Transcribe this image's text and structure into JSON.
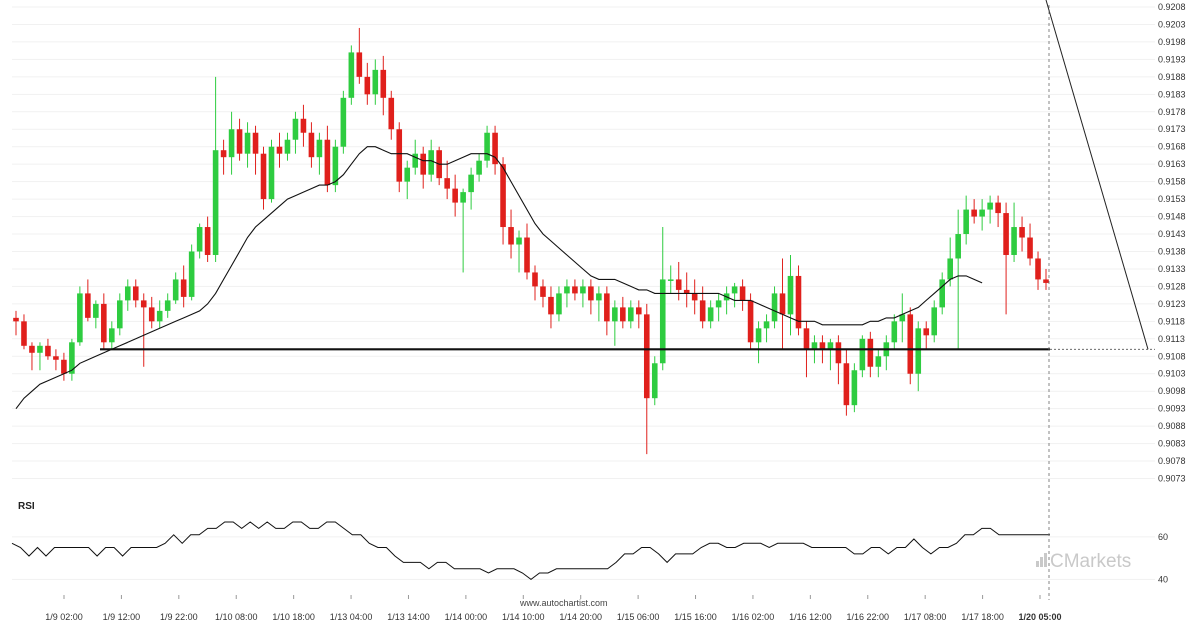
{
  "watermark": "www.autochartist.com",
  "brand": "Markets",
  "brand_prefix": "C",
  "rsi_label": "RSI",
  "colors": {
    "bull": "#2ecc40",
    "bear": "#e0201c",
    "ma": "#111111",
    "support": "#111111",
    "rsi": "#111111",
    "grid": "#f1f1f1",
    "forecast": "#222222"
  },
  "chart_data": {
    "type": "candlestick",
    "title": "",
    "xlabel": "",
    "ylabel": "",
    "ylim": [
      0.907,
      0.9208
    ],
    "price_ticks": [
      "0.9208",
      "0.9203",
      "0.9198",
      "0.9193",
      "0.9188",
      "0.9183",
      "0.9178",
      "0.9173",
      "0.9168",
      "0.9163",
      "0.9158",
      "0.9153",
      "0.9148",
      "0.9143",
      "0.9138",
      "0.9133",
      "0.9128",
      "0.9123",
      "0.9118",
      "0.9113",
      "0.9108",
      "0.9103",
      "0.9098",
      "0.9093",
      "0.9088",
      "0.9083",
      "0.9078",
      "0.9073"
    ],
    "x_ticks": [
      "1/9 02:00",
      "1/9 12:00",
      "1/9 22:00",
      "1/10 08:00",
      "1/10 18:00",
      "1/13 04:00",
      "1/13 14:00",
      "1/14 00:00",
      "1/14 10:00",
      "1/14 20:00",
      "1/15 06:00",
      "1/15 16:00",
      "1/16 02:00",
      "1/16 12:00",
      "1/16 22:00",
      "1/17 08:00",
      "1/17 18:00",
      "1/20 05:00"
    ],
    "support_level": 0.911,
    "forecast_target": 0.911,
    "rsi_ticks": [
      "60",
      "40"
    ],
    "rsi_ylim": [
      35,
      75
    ],
    "candles": [
      [
        0.9119,
        0.9121,
        0.9114,
        0.9118
      ],
      [
        0.9118,
        0.912,
        0.911,
        0.9111
      ],
      [
        0.9111,
        0.9112,
        0.9104,
        0.9109
      ],
      [
        0.9109,
        0.9112,
        0.9104,
        0.9111
      ],
      [
        0.9111,
        0.9113,
        0.9107,
        0.9108
      ],
      [
        0.9108,
        0.911,
        0.9104,
        0.9107
      ],
      [
        0.9107,
        0.9109,
        0.9101,
        0.9103
      ],
      [
        0.9103,
        0.9113,
        0.9101,
        0.9112
      ],
      [
        0.9112,
        0.9128,
        0.9111,
        0.9126
      ],
      [
        0.9126,
        0.913,
        0.9118,
        0.9119
      ],
      [
        0.9119,
        0.9124,
        0.9116,
        0.9123
      ],
      [
        0.9123,
        0.9126,
        0.911,
        0.9112
      ],
      [
        0.9112,
        0.9118,
        0.911,
        0.9116
      ],
      [
        0.9116,
        0.9126,
        0.9114,
        0.9124
      ],
      [
        0.9124,
        0.913,
        0.9121,
        0.9128
      ],
      [
        0.9128,
        0.913,
        0.9122,
        0.9124
      ],
      [
        0.9124,
        0.9126,
        0.9105,
        0.9122
      ],
      [
        0.9122,
        0.9125,
        0.9116,
        0.9118
      ],
      [
        0.9118,
        0.9124,
        0.9116,
        0.9121
      ],
      [
        0.9121,
        0.9126,
        0.9119,
        0.9124
      ],
      [
        0.9124,
        0.9132,
        0.9123,
        0.913
      ],
      [
        0.913,
        0.9134,
        0.9122,
        0.9125
      ],
      [
        0.9125,
        0.914,
        0.9124,
        0.9138
      ],
      [
        0.9138,
        0.9146,
        0.9136,
        0.9145
      ],
      [
        0.9145,
        0.9148,
        0.9135,
        0.9137
      ],
      [
        0.9137,
        0.9188,
        0.9135,
        0.9167
      ],
      [
        0.9167,
        0.917,
        0.916,
        0.9165
      ],
      [
        0.9165,
        0.9178,
        0.916,
        0.9173
      ],
      [
        0.9173,
        0.9176,
        0.9164,
        0.9166
      ],
      [
        0.9166,
        0.9175,
        0.9162,
        0.9172
      ],
      [
        0.9172,
        0.9174,
        0.916,
        0.9166
      ],
      [
        0.9166,
        0.9168,
        0.915,
        0.9153
      ],
      [
        0.9153,
        0.917,
        0.9152,
        0.9168
      ],
      [
        0.9168,
        0.9172,
        0.9162,
        0.9166
      ],
      [
        0.9166,
        0.9172,
        0.9164,
        0.917
      ],
      [
        0.917,
        0.9178,
        0.9166,
        0.9176
      ],
      [
        0.9176,
        0.918,
        0.9168,
        0.9172
      ],
      [
        0.9172,
        0.9175,
        0.9162,
        0.9165
      ],
      [
        0.9165,
        0.9172,
        0.916,
        0.917
      ],
      [
        0.917,
        0.9174,
        0.9155,
        0.9157
      ],
      [
        0.9157,
        0.917,
        0.9155,
        0.9168
      ],
      [
        0.9168,
        0.9184,
        0.9166,
        0.9182
      ],
      [
        0.9182,
        0.9197,
        0.918,
        0.9195
      ],
      [
        0.9195,
        0.9202,
        0.9186,
        0.9188
      ],
      [
        0.9188,
        0.9192,
        0.918,
        0.9183
      ],
      [
        0.9183,
        0.9193,
        0.918,
        0.919
      ],
      [
        0.919,
        0.9194,
        0.9177,
        0.9182
      ],
      [
        0.9182,
        0.9184,
        0.917,
        0.9173
      ],
      [
        0.9173,
        0.9175,
        0.9155,
        0.9158
      ],
      [
        0.9158,
        0.9164,
        0.9153,
        0.9162
      ],
      [
        0.9162,
        0.917,
        0.916,
        0.9166
      ],
      [
        0.9166,
        0.9168,
        0.9156,
        0.916
      ],
      [
        0.916,
        0.917,
        0.9158,
        0.9167
      ],
      [
        0.9167,
        0.9168,
        0.9157,
        0.9159
      ],
      [
        0.9159,
        0.9164,
        0.9153,
        0.9156
      ],
      [
        0.9156,
        0.916,
        0.9148,
        0.9152
      ],
      [
        0.9152,
        0.9156,
        0.9132,
        0.9155
      ],
      [
        0.9155,
        0.9162,
        0.915,
        0.916
      ],
      [
        0.916,
        0.9166,
        0.9158,
        0.9164
      ],
      [
        0.9164,
        0.9174,
        0.9162,
        0.9172
      ],
      [
        0.9172,
        0.9174,
        0.916,
        0.9163
      ],
      [
        0.9163,
        0.9165,
        0.914,
        0.9145
      ],
      [
        0.9145,
        0.915,
        0.9136,
        0.914
      ],
      [
        0.914,
        0.9144,
        0.9132,
        0.9142
      ],
      [
        0.9142,
        0.9146,
        0.913,
        0.9132
      ],
      [
        0.9132,
        0.9134,
        0.9124,
        0.9128
      ],
      [
        0.9128,
        0.913,
        0.9122,
        0.9125
      ],
      [
        0.9125,
        0.9128,
        0.9116,
        0.912
      ],
      [
        0.912,
        0.9128,
        0.9118,
        0.9126
      ],
      [
        0.9126,
        0.913,
        0.9122,
        0.9128
      ],
      [
        0.9128,
        0.913,
        0.9124,
        0.9126
      ],
      [
        0.9126,
        0.913,
        0.9122,
        0.9128
      ],
      [
        0.9128,
        0.913,
        0.912,
        0.9124
      ],
      [
        0.9124,
        0.9128,
        0.9118,
        0.9126
      ],
      [
        0.9126,
        0.9128,
        0.9114,
        0.9118
      ],
      [
        0.9118,
        0.9124,
        0.9111,
        0.9122
      ],
      [
        0.9122,
        0.9125,
        0.9116,
        0.9118
      ],
      [
        0.9118,
        0.9124,
        0.9116,
        0.9122
      ],
      [
        0.9122,
        0.9124,
        0.9116,
        0.912
      ],
      [
        0.912,
        0.9123,
        0.908,
        0.9096
      ],
      [
        0.9096,
        0.9108,
        0.9094,
        0.9106
      ],
      [
        0.9106,
        0.9145,
        0.9104,
        0.913
      ],
      [
        0.913,
        0.9134,
        0.9126,
        0.913
      ],
      [
        0.913,
        0.9135,
        0.9124,
        0.9127
      ],
      [
        0.9127,
        0.9132,
        0.9122,
        0.9126
      ],
      [
        0.9126,
        0.913,
        0.912,
        0.9124
      ],
      [
        0.9124,
        0.9128,
        0.9116,
        0.9118
      ],
      [
        0.9118,
        0.9124,
        0.9116,
        0.9122
      ],
      [
        0.9122,
        0.9126,
        0.9118,
        0.9124
      ],
      [
        0.9124,
        0.9128,
        0.912,
        0.9126
      ],
      [
        0.9126,
        0.9129,
        0.9122,
        0.9128
      ],
      [
        0.9128,
        0.913,
        0.9121,
        0.9124
      ],
      [
        0.9124,
        0.9126,
        0.911,
        0.9112
      ],
      [
        0.9112,
        0.9118,
        0.9106,
        0.9116
      ],
      [
        0.9116,
        0.912,
        0.9112,
        0.9118
      ],
      [
        0.9118,
        0.9128,
        0.9116,
        0.9126
      ],
      [
        0.9126,
        0.9136,
        0.911,
        0.912
      ],
      [
        0.912,
        0.9137,
        0.9114,
        0.9131
      ],
      [
        0.9131,
        0.9134,
        0.9114,
        0.9116
      ],
      [
        0.9116,
        0.9118,
        0.9102,
        0.911
      ],
      [
        0.911,
        0.9114,
        0.9106,
        0.9112
      ],
      [
        0.9112,
        0.9114,
        0.9106,
        0.911
      ],
      [
        0.911,
        0.9113,
        0.9104,
        0.9112
      ],
      [
        0.9112,
        0.9114,
        0.91,
        0.9106
      ],
      [
        0.9106,
        0.911,
        0.9091,
        0.9094
      ],
      [
        0.9094,
        0.9106,
        0.9092,
        0.9104
      ],
      [
        0.9104,
        0.9114,
        0.9102,
        0.9113
      ],
      [
        0.9113,
        0.9115,
        0.9102,
        0.9105
      ],
      [
        0.9105,
        0.911,
        0.9102,
        0.9108
      ],
      [
        0.9108,
        0.9114,
        0.9104,
        0.9112
      ],
      [
        0.9112,
        0.912,
        0.911,
        0.9118
      ],
      [
        0.9118,
        0.9126,
        0.9112,
        0.912
      ],
      [
        0.912,
        0.9122,
        0.91,
        0.9103
      ],
      [
        0.9103,
        0.9118,
        0.9098,
        0.9116
      ],
      [
        0.9116,
        0.9118,
        0.911,
        0.9114
      ],
      [
        0.9114,
        0.9124,
        0.9112,
        0.9122
      ],
      [
        0.9122,
        0.9132,
        0.912,
        0.913
      ],
      [
        0.913,
        0.9142,
        0.9128,
        0.9136
      ],
      [
        0.9136,
        0.915,
        0.911,
        0.9143
      ],
      [
        0.9143,
        0.9154,
        0.914,
        0.915
      ],
      [
        0.915,
        0.9153,
        0.9146,
        0.9148
      ],
      [
        0.9148,
        0.9153,
        0.9144,
        0.915
      ],
      [
        0.915,
        0.9154,
        0.9146,
        0.9152
      ],
      [
        0.9152,
        0.9154,
        0.9145,
        0.9149
      ],
      [
        0.9149,
        0.9152,
        0.912,
        0.9137
      ],
      [
        0.9137,
        0.9152,
        0.9135,
        0.9145
      ],
      [
        0.9145,
        0.9148,
        0.9138,
        0.9142
      ],
      [
        0.9142,
        0.9146,
        0.9134,
        0.9136
      ],
      [
        0.9136,
        0.9138,
        0.9127,
        0.913
      ],
      [
        0.913,
        0.9133,
        0.9127,
        0.9129
      ]
    ],
    "ma": [
      0.9093,
      0.9096,
      0.9098,
      0.91,
      0.9101,
      0.9102,
      0.9103,
      0.9104,
      0.9106,
      0.9107,
      0.9108,
      0.9109,
      0.911,
      0.9111,
      0.9112,
      0.9113,
      0.9114,
      0.9115,
      0.9116,
      0.9117,
      0.9118,
      0.9119,
      0.912,
      0.9121,
      0.9123,
      0.9126,
      0.913,
      0.9134,
      0.9138,
      0.9142,
      0.9145,
      0.9147,
      0.9149,
      0.9151,
      0.9153,
      0.9154,
      0.9155,
      0.9156,
      0.9157,
      0.9157,
      0.9158,
      0.916,
      0.9163,
      0.9166,
      0.9168,
      0.9168,
      0.9167,
      0.9166,
      0.9166,
      0.9166,
      0.9165,
      0.9164,
      0.9164,
      0.9163,
      0.9163,
      0.9164,
      0.9165,
      0.9166,
      0.9166,
      0.9166,
      0.9165,
      0.9162,
      0.9158,
      0.9154,
      0.915,
      0.9146,
      0.9143,
      0.9141,
      0.9139,
      0.9137,
      0.9135,
      0.9133,
      0.9131,
      0.913,
      0.913,
      0.913,
      0.9129,
      0.9128,
      0.9127,
      0.9127,
      0.9126,
      0.9126,
      0.9126,
      0.9126,
      0.9126,
      0.9126,
      0.9126,
      0.9126,
      0.9126,
      0.9125,
      0.9124,
      0.9124,
      0.9124,
      0.9123,
      0.9122,
      0.9121,
      0.912,
      0.9119,
      0.9118,
      0.9118,
      0.9118,
      0.9117,
      0.9117,
      0.9117,
      0.9117,
      0.9117,
      0.9117,
      0.9118,
      0.9118,
      0.9119,
      0.9119,
      0.912,
      0.9121,
      0.9122,
      0.9124,
      0.9126,
      0.9128,
      0.913,
      0.9131,
      0.9131,
      0.913,
      0.9129
    ],
    "rsi": [
      57,
      55,
      51,
      55,
      51,
      55,
      55,
      55,
      55,
      55,
      51,
      55,
      55,
      51,
      55,
      55,
      55,
      55,
      57,
      61,
      57,
      61,
      61,
      64,
      64,
      67,
      67,
      64,
      67,
      64,
      67,
      64,
      64,
      67,
      67,
      64,
      64,
      67,
      67,
      64,
      61,
      61,
      57,
      55,
      55,
      51,
      48,
      48,
      48,
      45,
      48,
      48,
      45,
      45,
      45,
      45,
      43,
      45,
      45,
      45,
      43,
      40,
      43,
      43,
      45,
      45,
      45,
      45,
      45,
      45,
      45,
      48,
      52,
      52,
      55,
      55,
      52,
      48,
      52,
      52,
      52,
      55,
      57,
      57,
      55,
      55,
      57,
      57,
      57,
      55,
      57,
      57,
      57,
      57,
      55,
      55,
      55,
      55,
      55,
      52,
      52,
      55,
      55,
      52,
      55,
      55,
      59,
      55,
      52,
      55,
      55,
      57,
      61,
      61,
      64,
      64,
      61,
      61,
      61,
      61,
      61,
      61,
      61
    ]
  }
}
